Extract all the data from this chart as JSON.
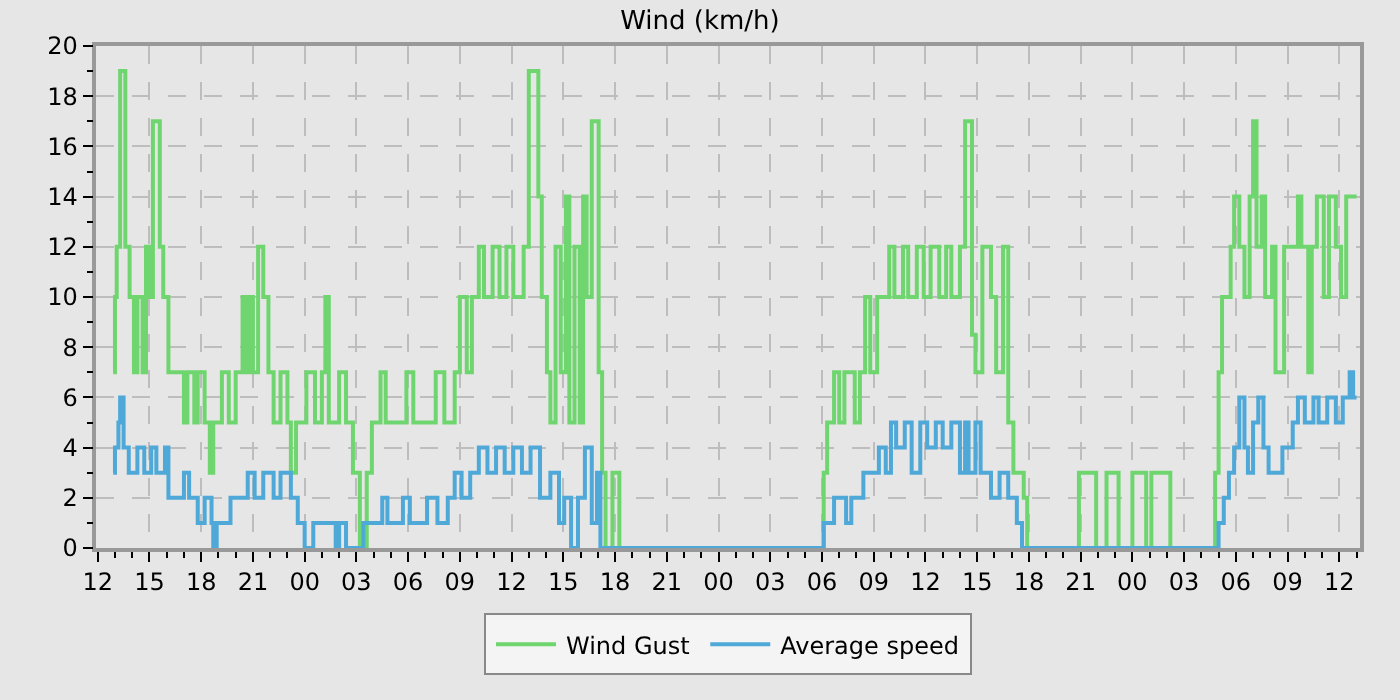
{
  "chart_data": {
    "type": "step",
    "title": "Wind (km/h)",
    "legend": "bottom",
    "grid": true,
    "marker": "none",
    "line_style": "solid",
    "xlim": [
      "--01-01T11:54",
      "--01-04T13:12"
    ],
    "xticks": [
      {
        "value": "--01-01T12:00",
        "label": "12"
      },
      {
        "value": "--01-01T15:00",
        "label": "15"
      },
      {
        "value": "--01-01T18:00",
        "label": "18"
      },
      {
        "value": "--01-01T21:00",
        "label": "21"
      },
      {
        "value": "--01-02T00:00",
        "label": "00"
      },
      {
        "value": "--01-02T03:00",
        "label": "03"
      },
      {
        "value": "--01-02T06:00",
        "label": "06"
      },
      {
        "value": "--01-02T09:00",
        "label": "09"
      },
      {
        "value": "--01-02T12:00",
        "label": "12"
      },
      {
        "value": "--01-02T15:00",
        "label": "15"
      },
      {
        "value": "--01-02T18:00",
        "label": "18"
      },
      {
        "value": "--01-02T21:00",
        "label": "21"
      },
      {
        "value": "--01-03T00:00",
        "label": "00"
      },
      {
        "value": "--01-03T03:00",
        "label": "03"
      },
      {
        "value": "--01-03T06:00",
        "label": "06"
      },
      {
        "value": "--01-03T09:00",
        "label": "09"
      },
      {
        "value": "--01-03T12:00",
        "label": "12"
      },
      {
        "value": "--01-03T15:00",
        "label": "15"
      },
      {
        "value": "--01-03T18:00",
        "label": "18"
      },
      {
        "value": "--01-03T21:00",
        "label": "21"
      },
      {
        "value": "--01-04T00:00",
        "label": "00"
      },
      {
        "value": "--01-04T03:00",
        "label": "03"
      },
      {
        "value": "--01-04T06:00",
        "label": "06"
      },
      {
        "value": "--01-04T09:00",
        "label": "09"
      },
      {
        "value": "--01-04T12:00",
        "label": "12"
      }
    ],
    "ylim": [
      0,
      20
    ],
    "yticks": [
      0,
      2,
      4,
      6,
      8,
      10,
      12,
      14,
      16,
      18,
      20
    ],
    "series": [
      {
        "name": "Wind Gust",
        "color": "#6fd66f",
        "x": [
          "--01-01T12:54",
          "--01-01T13:00",
          "--01-01T13:06",
          "--01-01T13:18",
          "--01-01T13:36",
          "--01-01T13:51",
          "--01-01T14:06",
          "--01-01T14:18",
          "--01-01T14:36",
          "--01-01T14:48",
          "--01-01T15:00",
          "--01-01T15:12",
          "--01-01T15:36",
          "--01-01T15:48",
          "--01-01T16:06",
          "--01-01T17:00",
          "--01-01T17:12",
          "--01-01T17:36",
          "--01-01T17:48",
          "--01-01T18:12",
          "--01-01T18:30",
          "--01-01T18:42",
          "--01-01T19:12",
          "--01-01T19:36",
          "--01-01T20:00",
          "--01-01T20:24",
          "--01-01T20:36",
          "--01-01T20:48",
          "--01-01T21:00",
          "--01-01T21:18",
          "--01-01T21:36",
          "--01-01T21:54",
          "--01-01T22:12",
          "--01-01T22:36",
          "--01-01T23:00",
          "--01-01T23:12",
          "--01-01T23:30",
          "--01-02T00:06",
          "--01-02T00:36",
          "--01-02T01:00",
          "--01-02T01:12",
          "--01-02T01:24",
          "--01-02T02:00",
          "--01-02T02:24",
          "--01-02T02:48",
          "--01-02T03:12",
          "--01-02T03:36",
          "--01-02T03:54",
          "--01-02T04:24",
          "--01-02T04:42",
          "--01-02T05:54",
          "--01-02T06:18",
          "--01-02T07:36",
          "--01-02T08:06",
          "--01-02T08:42",
          "--01-02T09:00",
          "--01-02T09:24",
          "--01-02T09:42",
          "--01-02T10:06",
          "--01-02T10:24",
          "--01-02T10:54",
          "--01-02T11:18",
          "--01-02T11:42",
          "--01-02T12:06",
          "--01-02T12:42",
          "--01-02T13:00",
          "--01-02T13:33",
          "--01-02T13:45",
          "--01-02T14:03",
          "--01-02T14:15",
          "--01-02T14:33",
          "--01-02T14:51",
          "--01-02T15:09",
          "--01-02T15:21",
          "--01-02T15:39",
          "--01-02T15:57",
          "--01-02T16:09",
          "--01-02T16:21",
          "--01-02T16:39",
          "--01-02T17:03",
          "--01-02T17:15",
          "--01-02T17:27",
          "--01-02T17:51",
          "--01-02T18:15",
          "--01-03T06:06",
          "--01-03T06:18",
          "--01-03T06:42",
          "--01-03T07:00",
          "--01-03T07:18",
          "--01-03T07:54",
          "--01-03T08:12",
          "--01-03T08:30",
          "--01-03T08:48",
          "--01-03T09:12",
          "--01-03T09:54",
          "--01-03T10:12",
          "--01-03T10:42",
          "--01-03T11:00",
          "--01-03T11:30",
          "--01-03T11:54",
          "--01-03T12:18",
          "--01-03T12:48",
          "--01-03T13:12",
          "--01-03T13:30",
          "--01-03T14:00",
          "--01-03T14:18",
          "--01-03T14:42",
          "--01-03T14:54",
          "--01-03T15:18",
          "--01-03T15:48",
          "--01-03T16:06",
          "--01-03T16:30",
          "--01-03T16:48",
          "--01-03T17:06",
          "--01-03T17:42",
          "--01-03T17:54",
          "--01-03T20:54",
          "--01-03T21:54",
          "--01-03T22:30",
          "--01-03T23:12",
          "--01-04T00:00",
          "--01-04T00:48",
          "--01-04T01:06",
          "--01-04T02:12",
          "--01-04T04:48",
          "--01-04T05:00",
          "--01-04T05:12",
          "--01-04T05:42",
          "--01-04T05:54",
          "--01-04T06:12",
          "--01-04T06:30",
          "--01-04T06:48",
          "--01-04T07:00",
          "--01-04T07:12",
          "--01-04T07:30",
          "--01-04T07:42",
          "--01-04T08:06",
          "--01-04T08:18",
          "--01-04T08:48",
          "--01-04T09:36",
          "--01-04T09:48",
          "--01-04T10:12",
          "--01-04T10:24",
          "--01-04T10:42",
          "--01-04T11:06",
          "--01-04T11:24",
          "--01-04T11:48",
          "--01-04T12:06",
          "--01-04T12:24",
          "--01-04T13:00"
        ],
        "values": [
          7,
          10,
          12,
          19,
          12,
          10,
          7,
          10,
          7,
          12,
          10,
          17,
          12,
          10,
          7,
          5,
          7,
          5,
          7,
          5,
          3,
          5,
          7,
          5,
          7,
          10,
          7,
          10,
          7,
          12,
          10,
          7,
          5,
          7,
          5,
          3,
          5,
          7,
          5,
          7,
          10,
          5,
          7,
          5,
          3,
          0,
          3,
          5,
          7,
          5,
          7,
          5,
          7,
          5,
          7,
          10,
          7,
          10,
          12,
          10,
          12,
          10,
          12,
          10,
          12,
          19,
          14,
          10,
          7,
          5,
          12,
          7,
          14,
          5,
          12,
          5,
          14,
          10,
          17,
          7,
          3,
          0,
          3,
          0,
          3,
          5,
          7,
          5,
          7,
          5,
          7,
          10,
          7,
          10,
          12,
          10,
          12,
          10,
          12,
          10,
          12,
          10,
          12,
          10,
          12,
          17,
          8.5,
          7,
          12,
          10,
          7,
          12,
          5,
          3,
          2,
          0,
          3,
          0,
          3,
          0,
          3,
          0,
          3,
          0,
          3,
          7,
          10,
          12,
          14,
          12,
          10,
          14,
          17,
          12,
          14,
          10,
          12,
          7,
          12,
          14,
          12,
          7,
          12,
          14,
          10,
          14,
          12,
          10,
          14,
          14
        ]
      },
      {
        "name": "Average speed",
        "color": "#4ea8d8",
        "x": [
          "--01-01T12:54",
          "--01-01T13:00",
          "--01-01T13:12",
          "--01-01T13:18",
          "--01-01T13:30",
          "--01-01T13:48",
          "--01-01T14:18",
          "--01-01T14:42",
          "--01-01T15:06",
          "--01-01T15:24",
          "--01-01T15:54",
          "--01-01T16:06",
          "--01-01T17:00",
          "--01-01T17:18",
          "--01-01T17:48",
          "--01-01T18:12",
          "--01-01T18:36",
          "--01-01T18:42",
          "--01-01T18:54",
          "--01-01T19:42",
          "--01-01T20:24",
          "--01-01T20:42",
          "--01-01T21:06",
          "--01-01T21:36",
          "--01-01T22:12",
          "--01-01T22:36",
          "--01-01T23:12",
          "--01-01T23:36",
          "--01-02T00:00",
          "--01-02T00:30",
          "--01-02T01:48",
          "--01-02T02:00",
          "--01-02T02:24",
          "--01-02T03:24",
          "--01-02T04:30",
          "--01-02T04:48",
          "--01-02T05:42",
          "--01-02T06:06",
          "--01-02T07:06",
          "--01-02T07:42",
          "--01-02T08:18",
          "--01-02T08:42",
          "--01-02T09:06",
          "--01-02T09:36",
          "--01-02T10:06",
          "--01-02T10:36",
          "--01-02T11:06",
          "--01-02T11:36",
          "--01-02T12:06",
          "--01-02T12:36",
          "--01-02T13:06",
          "--01-02T13:39",
          "--01-02T14:15",
          "--01-02T14:45",
          "--01-02T15:03",
          "--01-02T15:27",
          "--01-02T15:51",
          "--01-02T16:15",
          "--01-02T16:39",
          "--01-02T16:57",
          "--01-02T17:09",
          "--01-03T06:06",
          "--01-03T06:42",
          "--01-03T07:24",
          "--01-03T07:42",
          "--01-03T08:24",
          "--01-03T09:18",
          "--01-03T09:42",
          "--01-03T10:00",
          "--01-03T10:18",
          "--01-03T10:48",
          "--01-03T11:12",
          "--01-03T11:42",
          "--01-03T12:06",
          "--01-03T12:36",
          "--01-03T13:00",
          "--01-03T13:30",
          "--01-03T14:00",
          "--01-03T14:18",
          "--01-03T14:30",
          "--01-03T14:54",
          "--01-03T15:12",
          "--01-03T15:48",
          "--01-03T16:18",
          "--01-03T16:48",
          "--01-03T17:18",
          "--01-03T17:36",
          "--01-04T05:00",
          "--01-04T05:18",
          "--01-04T05:36",
          "--01-04T05:54",
          "--01-04T06:12",
          "--01-04T06:30",
          "--01-04T06:42",
          "--01-04T07:00",
          "--01-04T07:18",
          "--01-04T07:36",
          "--01-04T07:54",
          "--01-04T08:42",
          "--01-04T09:18",
          "--01-04T09:36",
          "--01-04T10:00",
          "--01-04T10:30",
          "--01-04T10:48",
          "--01-04T11:18",
          "--01-04T11:48",
          "--01-04T12:12",
          "--01-04T12:36",
          "--01-04T12:48",
          "--01-04T13:00"
        ],
        "values": [
          3,
          4,
          5,
          6,
          4,
          3,
          4,
          3,
          4,
          3,
          4,
          2,
          3,
          2,
          1,
          2,
          1,
          0,
          1,
          2,
          2,
          3,
          2,
          3,
          2,
          3,
          2,
          1,
          0,
          1,
          0,
          1,
          0,
          1,
          2,
          1,
          2,
          1,
          2,
          1,
          2,
          3,
          2,
          3,
          4,
          3,
          4,
          3,
          4,
          3,
          4,
          2,
          3,
          1,
          2,
          0,
          2,
          4,
          1,
          3,
          0,
          1,
          2,
          1,
          2,
          3,
          4,
          3,
          5,
          4,
          5,
          3,
          5,
          4,
          5,
          4,
          5,
          3,
          5,
          3,
          5,
          3,
          2,
          3,
          2,
          1,
          0,
          1,
          2,
          3,
          4,
          6,
          4,
          3,
          5,
          6,
          4,
          3,
          4,
          5,
          6,
          5,
          6,
          5,
          6,
          5,
          6,
          7,
          6,
          6
        ]
      }
    ]
  }
}
